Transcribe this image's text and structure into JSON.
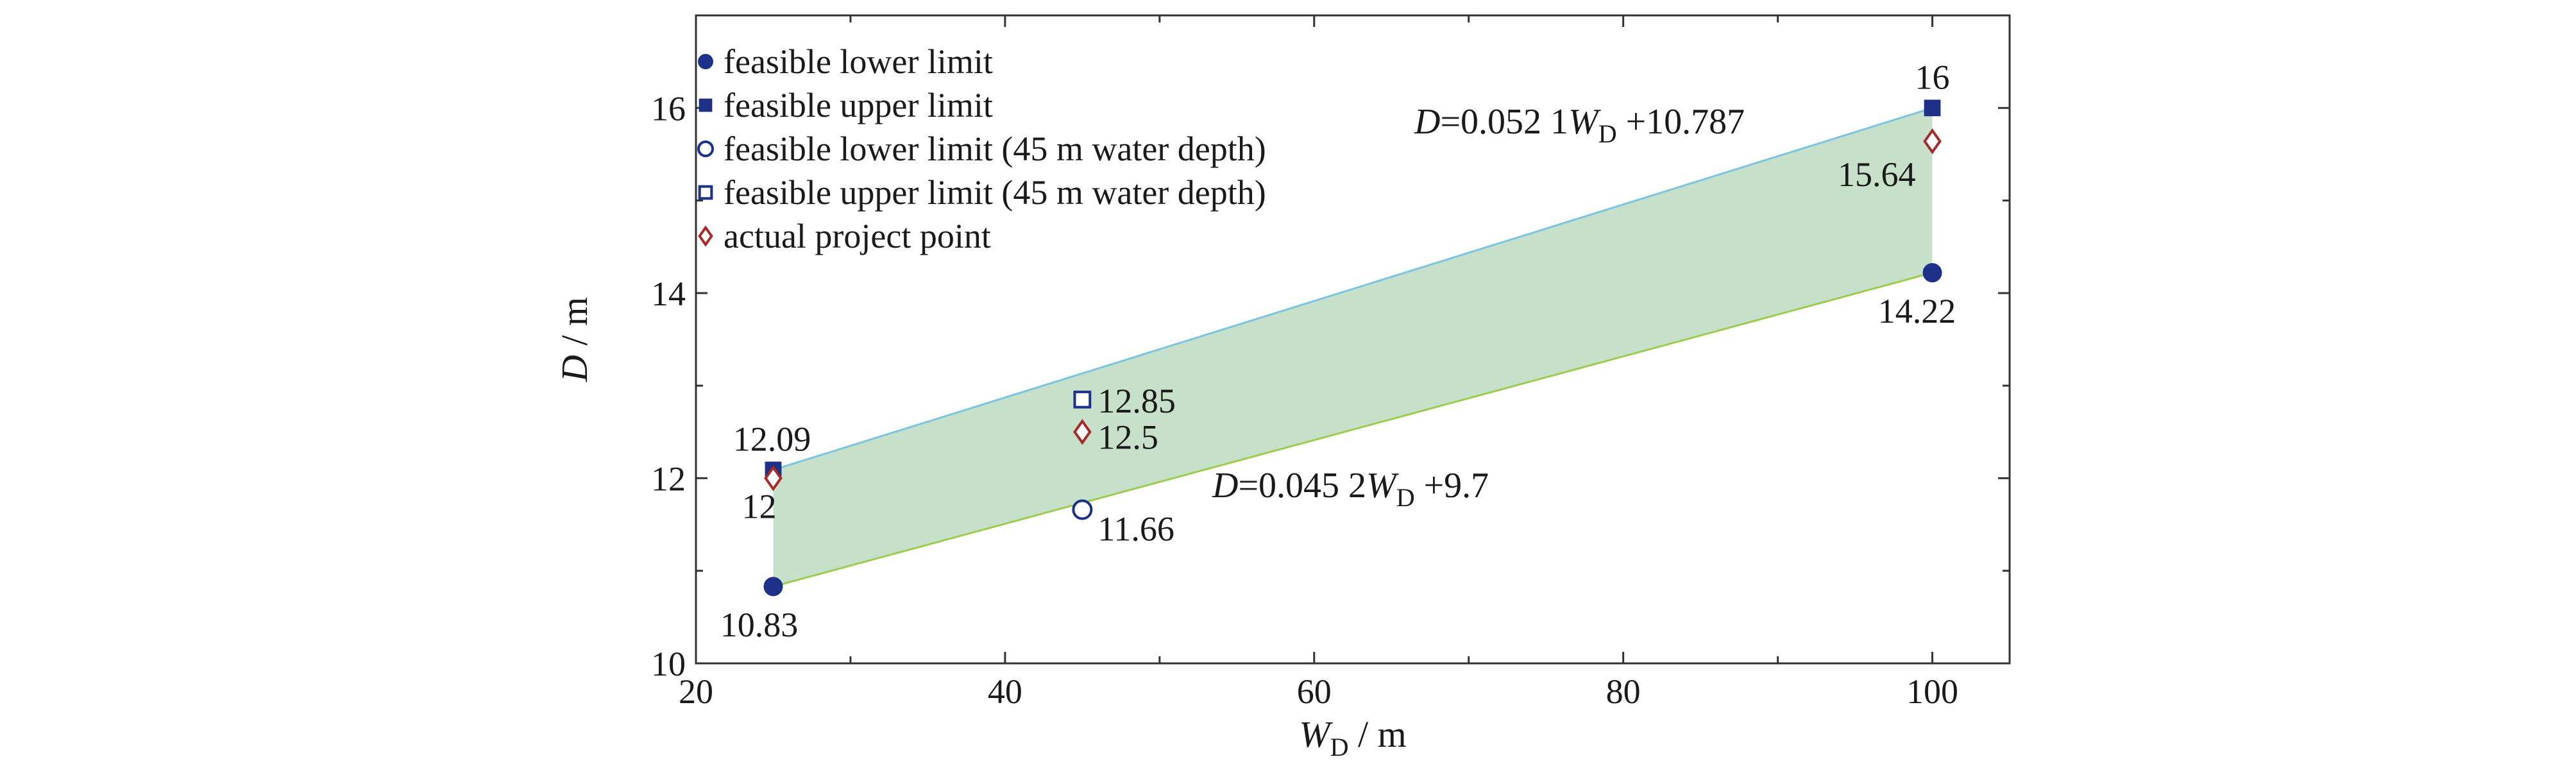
{
  "chart_data": {
    "type": "scatter",
    "xlabel": {
      "var": "W",
      "sub": "D",
      "unit": " / m"
    },
    "ylabel": {
      "var": "D",
      "unit": " / m"
    },
    "xlim": [
      20,
      105
    ],
    "ylim": [
      10,
      17
    ],
    "x_ticks": [
      20,
      40,
      60,
      80,
      100
    ],
    "y_ticks": [
      10,
      12,
      14,
      16
    ],
    "x_minor_ticks": [
      30,
      50,
      70,
      90
    ],
    "y_minor_ticks": [
      11,
      13,
      15
    ],
    "grid": false,
    "legend_placement": "top-left",
    "colors": {
      "navy": "#1c3187",
      "red": "#a52a2a",
      "band_fill": "#c6e0c9",
      "upper_line": "#7cc4e0",
      "lower_line": "#9ccc4e"
    },
    "band": {
      "upper": {
        "x": [
          25,
          100
        ],
        "y": [
          12.09,
          16
        ]
      },
      "lower": {
        "x": [
          25,
          100
        ],
        "y": [
          10.83,
          14.22
        ]
      }
    },
    "series": [
      {
        "name": "feasible lower limit",
        "marker": "filled-circle",
        "color": "#1c3187",
        "points": [
          {
            "x": 25,
            "y": 10.83,
            "label": "10.83"
          },
          {
            "x": 100,
            "y": 14.22,
            "label": "14.22"
          }
        ]
      },
      {
        "name": "feasible upper limit",
        "marker": "filled-square",
        "color": "#1c3187",
        "points": [
          {
            "x": 25,
            "y": 12.09,
            "label": "12.09"
          },
          {
            "x": 100,
            "y": 16,
            "label": "16"
          }
        ]
      },
      {
        "name": "feasible lower limit (45 m water depth)",
        "marker": "open-circle",
        "color": "#1c3187",
        "points": [
          {
            "x": 45,
            "y": 11.66,
            "label": "11.66"
          }
        ]
      },
      {
        "name": "feasible upper limit (45 m water depth)",
        "marker": "open-square",
        "color": "#1c3187",
        "points": [
          {
            "x": 45,
            "y": 12.85,
            "label": "12.85"
          }
        ]
      },
      {
        "name": "actual project point",
        "marker": "open-diamond",
        "color": "#a52a2a",
        "points": [
          {
            "x": 25,
            "y": 12,
            "label": "12"
          },
          {
            "x": 45,
            "y": 12.5,
            "label": "12.5"
          },
          {
            "x": 100,
            "y": 15.64,
            "label": "15.64"
          }
        ]
      }
    ],
    "annotations": [
      {
        "id": "upper-eq",
        "lhs": "D",
        "mid": "=0.052 1",
        "var": "W",
        "sub": "D",
        "rhs": " +10.787"
      },
      {
        "id": "lower-eq",
        "lhs": "D",
        "mid": "=0.045 2",
        "var": "W",
        "sub": "D",
        "rhs": " +9.7"
      }
    ]
  }
}
